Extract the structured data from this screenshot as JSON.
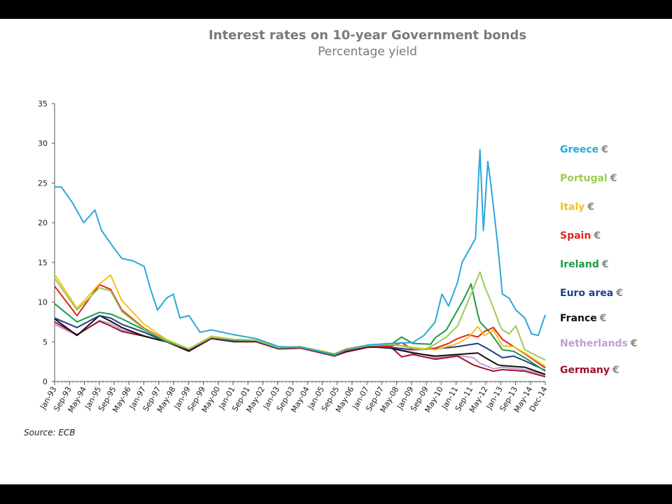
{
  "slide": {
    "source": "Source: ECB"
  },
  "chart_data": {
    "type": "line",
    "title": "Interest rates on 10-year Government bonds",
    "subtitle": "Percentage yield",
    "xlabel": "",
    "ylabel": "",
    "xlim": [
      1993.0,
      2014.917
    ],
    "ylim": [
      0,
      35
    ],
    "yticks": [
      0,
      5,
      10,
      15,
      20,
      25,
      30,
      35
    ],
    "xtick_labels": [
      "Jan-93",
      "Sep-93",
      "May-94",
      "Jan-95",
      "Sep-95",
      "May-96",
      "Jan-97",
      "Sep-97",
      "May-98",
      "Jan-99",
      "Sep-99",
      "May-00",
      "Jan-01",
      "Sep-01",
      "May-02",
      "Jan-03",
      "Sep-03",
      "May-04",
      "Jan-05",
      "Sep-05",
      "May-06",
      "Jan-07",
      "Sep-07",
      "May-08",
      "Jan-09",
      "Sep-09",
      "May-10",
      "Jan-11",
      "Sep-11",
      "May-12",
      "Jan-13",
      "Sep-13",
      "May-14",
      "Dec-14"
    ],
    "legend_position": "right",
    "grid": false,
    "series": [
      {
        "name": "Netherlands",
        "color": "#c39bd3",
        "x": [
          1993,
          1994,
          1995,
          1995.5,
          1996,
          1997,
          1998,
          1999,
          2000,
          2001,
          2002,
          2003,
          2004,
          2005.5,
          2006,
          2007,
          2008,
          2009,
          2010,
          2011,
          2011.7,
          2012,
          2012.6,
          2013,
          2014,
          2014.917
        ],
        "values": [
          7.2,
          5.8,
          7.7,
          7.3,
          6.5,
          5.8,
          5.0,
          3.8,
          5.5,
          5.2,
          5.0,
          4.2,
          4.3,
          3.3,
          3.8,
          4.4,
          4.3,
          3.7,
          3.0,
          3.3,
          3.0,
          2.3,
          1.6,
          1.8,
          1.5,
          0.8
        ]
      },
      {
        "name": "Germany",
        "color": "#a0102a",
        "x": [
          1993,
          1994,
          1995,
          1995.5,
          1996,
          1997,
          1998,
          1999,
          2000,
          2001,
          2002,
          2003,
          2004,
          2005.5,
          2006,
          2007,
          2008,
          2008.5,
          2009,
          2010,
          2011,
          2011.7,
          2012,
          2012.6,
          2013,
          2014,
          2014.917
        ],
        "values": [
          7.5,
          5.9,
          7.6,
          7.0,
          6.3,
          5.7,
          5.0,
          3.8,
          5.4,
          5.0,
          5.0,
          4.1,
          4.2,
          3.2,
          3.7,
          4.3,
          4.4,
          3.1,
          3.4,
          2.8,
          3.2,
          2.1,
          1.8,
          1.3,
          1.5,
          1.3,
          0.6
        ]
      },
      {
        "name": "France",
        "color": "#111111",
        "x": [
          1993,
          1994,
          1995,
          1995.5,
          1996,
          1997,
          1998,
          1999,
          2000,
          2001,
          2002,
          2003,
          2004,
          2005.5,
          2006,
          2007,
          2008,
          2009,
          2010,
          2011,
          2011.9,
          2012.3,
          2012.8,
          2013,
          2014,
          2014.917
        ],
        "values": [
          7.9,
          5.8,
          8.3,
          7.6,
          6.8,
          5.7,
          5.0,
          3.9,
          5.5,
          5.1,
          5.1,
          4.2,
          4.3,
          3.3,
          3.8,
          4.4,
          4.2,
          3.6,
          3.2,
          3.4,
          3.6,
          2.9,
          2.1,
          2.0,
          1.8,
          0.9
        ]
      },
      {
        "name": "Euro area",
        "color": "#1f3f8a",
        "x": [
          1993,
          1994,
          1995,
          1995.5,
          1996,
          1997,
          1998,
          1999,
          2000,
          2001,
          2002,
          2003,
          2004,
          2005.5,
          2006,
          2007,
          2008,
          2009,
          2010,
          2011,
          2011.9,
          2012.3,
          2013,
          2013.5,
          2014,
          2014.917
        ],
        "values": [
          8.0,
          6.8,
          8.3,
          8.0,
          7.2,
          6.2,
          5.0,
          4.0,
          5.5,
          5.1,
          5.1,
          4.2,
          4.3,
          3.4,
          3.9,
          4.5,
          4.3,
          4.0,
          4.1,
          4.4,
          4.8,
          4.2,
          3.0,
          3.2,
          2.6,
          1.4
        ]
      },
      {
        "name": "Ireland",
        "color": "#1e9a45",
        "x": [
          1993,
          1994,
          1995,
          1995.5,
          1996,
          1997,
          1998,
          1999,
          2000,
          2001,
          2002,
          2003,
          2004,
          2005.5,
          2006,
          2007,
          2008,
          2008.5,
          2009,
          2009.8,
          2010,
          2010.5,
          2011,
          2011.3,
          2011.6,
          2011.9,
          2012,
          2012.5,
          2013,
          2013.5,
          2014,
          2014.917
        ],
        "values": [
          9.8,
          7.5,
          8.7,
          8.5,
          7.9,
          6.5,
          5.0,
          4.1,
          5.6,
          5.2,
          5.2,
          4.2,
          4.3,
          3.3,
          3.9,
          4.5,
          4.6,
          5.6,
          4.8,
          4.7,
          5.5,
          6.5,
          9.0,
          10.5,
          12.3,
          8.5,
          7.5,
          6.0,
          4.0,
          3.8,
          3.0,
          1.3
        ]
      },
      {
        "name": "Spain",
        "color": "#e32222",
        "x": [
          1993,
          1994,
          1995,
          1995.5,
          1996,
          1997,
          1998,
          1999,
          2000,
          2001,
          2002,
          2003,
          2004,
          2005.5,
          2006,
          2007,
          2008,
          2008.5,
          2009,
          2010,
          2010.6,
          2011,
          2011.5,
          2011.9,
          2012.2,
          2012.6,
          2013,
          2013.5,
          2014,
          2014.917
        ],
        "values": [
          12.0,
          8.3,
          12.2,
          11.6,
          9.0,
          6.7,
          5.2,
          4.1,
          5.6,
          5.3,
          5.2,
          4.3,
          4.3,
          3.4,
          3.9,
          4.5,
          4.4,
          4.9,
          4.0,
          4.2,
          4.8,
          5.4,
          5.9,
          5.6,
          6.3,
          6.8,
          5.3,
          4.4,
          3.5,
          1.7
        ]
      },
      {
        "name": "Italy",
        "color": "#f5c116",
        "x": [
          1993,
          1994,
          1995,
          1995.5,
          1996,
          1997,
          1998,
          1999,
          2000,
          2001,
          2002,
          2003,
          2004,
          2005.5,
          2006,
          2007,
          2008,
          2009,
          2010,
          2010.8,
          2011,
          2011.5,
          2011.9,
          2012.2,
          2012.6,
          2013,
          2013.5,
          2014,
          2014.917
        ],
        "values": [
          13.5,
          9.2,
          12.3,
          13.4,
          10.2,
          7.2,
          5.3,
          4.1,
          5.7,
          5.3,
          5.2,
          4.3,
          4.4,
          3.5,
          4.1,
          4.6,
          4.7,
          4.3,
          4.0,
          4.6,
          4.8,
          5.6,
          6.9,
          5.8,
          6.5,
          4.5,
          4.4,
          3.6,
          1.9
        ]
      },
      {
        "name": "Portugal",
        "color": "#99cc55",
        "x": [
          1993,
          1994,
          1995,
          1995.5,
          1996,
          1997,
          1998,
          1999,
          2000,
          2001,
          2002,
          2003,
          2004,
          2005.5,
          2006,
          2007,
          2008,
          2009,
          2009.5,
          2010,
          2010.5,
          2011,
          2011.3,
          2011.6,
          2012,
          2012.2,
          2012.5,
          2012.9,
          2013,
          2013.3,
          2013.6,
          2014,
          2014.917
        ],
        "values": [
          13.0,
          9.0,
          11.8,
          11.4,
          8.8,
          6.6,
          5.2,
          4.1,
          5.6,
          5.3,
          5.2,
          4.3,
          4.4,
          3.4,
          4.0,
          4.5,
          4.7,
          4.2,
          4.0,
          4.7,
          5.6,
          7.0,
          9.0,
          11.0,
          13.8,
          12.0,
          10.0,
          7.0,
          6.5,
          6.0,
          7.0,
          4.0,
          2.7
        ]
      },
      {
        "name": "Greece",
        "color": "#2aa7d8",
        "x": [
          1993,
          1993.3,
          1993.8,
          1994.3,
          1994.8,
          1995.1,
          1995.6,
          1996,
          1996.5,
          1997,
          1997.3,
          1997.6,
          1998,
          1998.3,
          1998.6,
          1999,
          1999.5,
          2000,
          2001,
          2002,
          2003,
          2004,
          2005.5,
          2006,
          2007,
          2008,
          2009,
          2009.5,
          2010,
          2010.3,
          2010.6,
          2011,
          2011.2,
          2011.5,
          2011.8,
          2012.0,
          2012.15,
          2012.35,
          2012.5,
          2012.8,
          2013,
          2013.3,
          2013.6,
          2014,
          2014.3,
          2014.6,
          2014.917
        ],
        "values": [
          24.5,
          24.5,
          22.5,
          20.0,
          21.6,
          19.0,
          17.0,
          15.5,
          15.2,
          14.5,
          11.5,
          9.0,
          10.5,
          11.0,
          8.0,
          8.3,
          6.2,
          6.5,
          5.9,
          5.4,
          4.4,
          4.3,
          3.4,
          4.0,
          4.6,
          4.8,
          4.9,
          5.8,
          7.5,
          11.0,
          9.5,
          12.5,
          15.0,
          16.5,
          18.0,
          29.2,
          19.0,
          27.7,
          24.5,
          17.0,
          11.0,
          10.5,
          9.0,
          8.0,
          6.0,
          5.8,
          8.4
        ]
      }
    ]
  }
}
